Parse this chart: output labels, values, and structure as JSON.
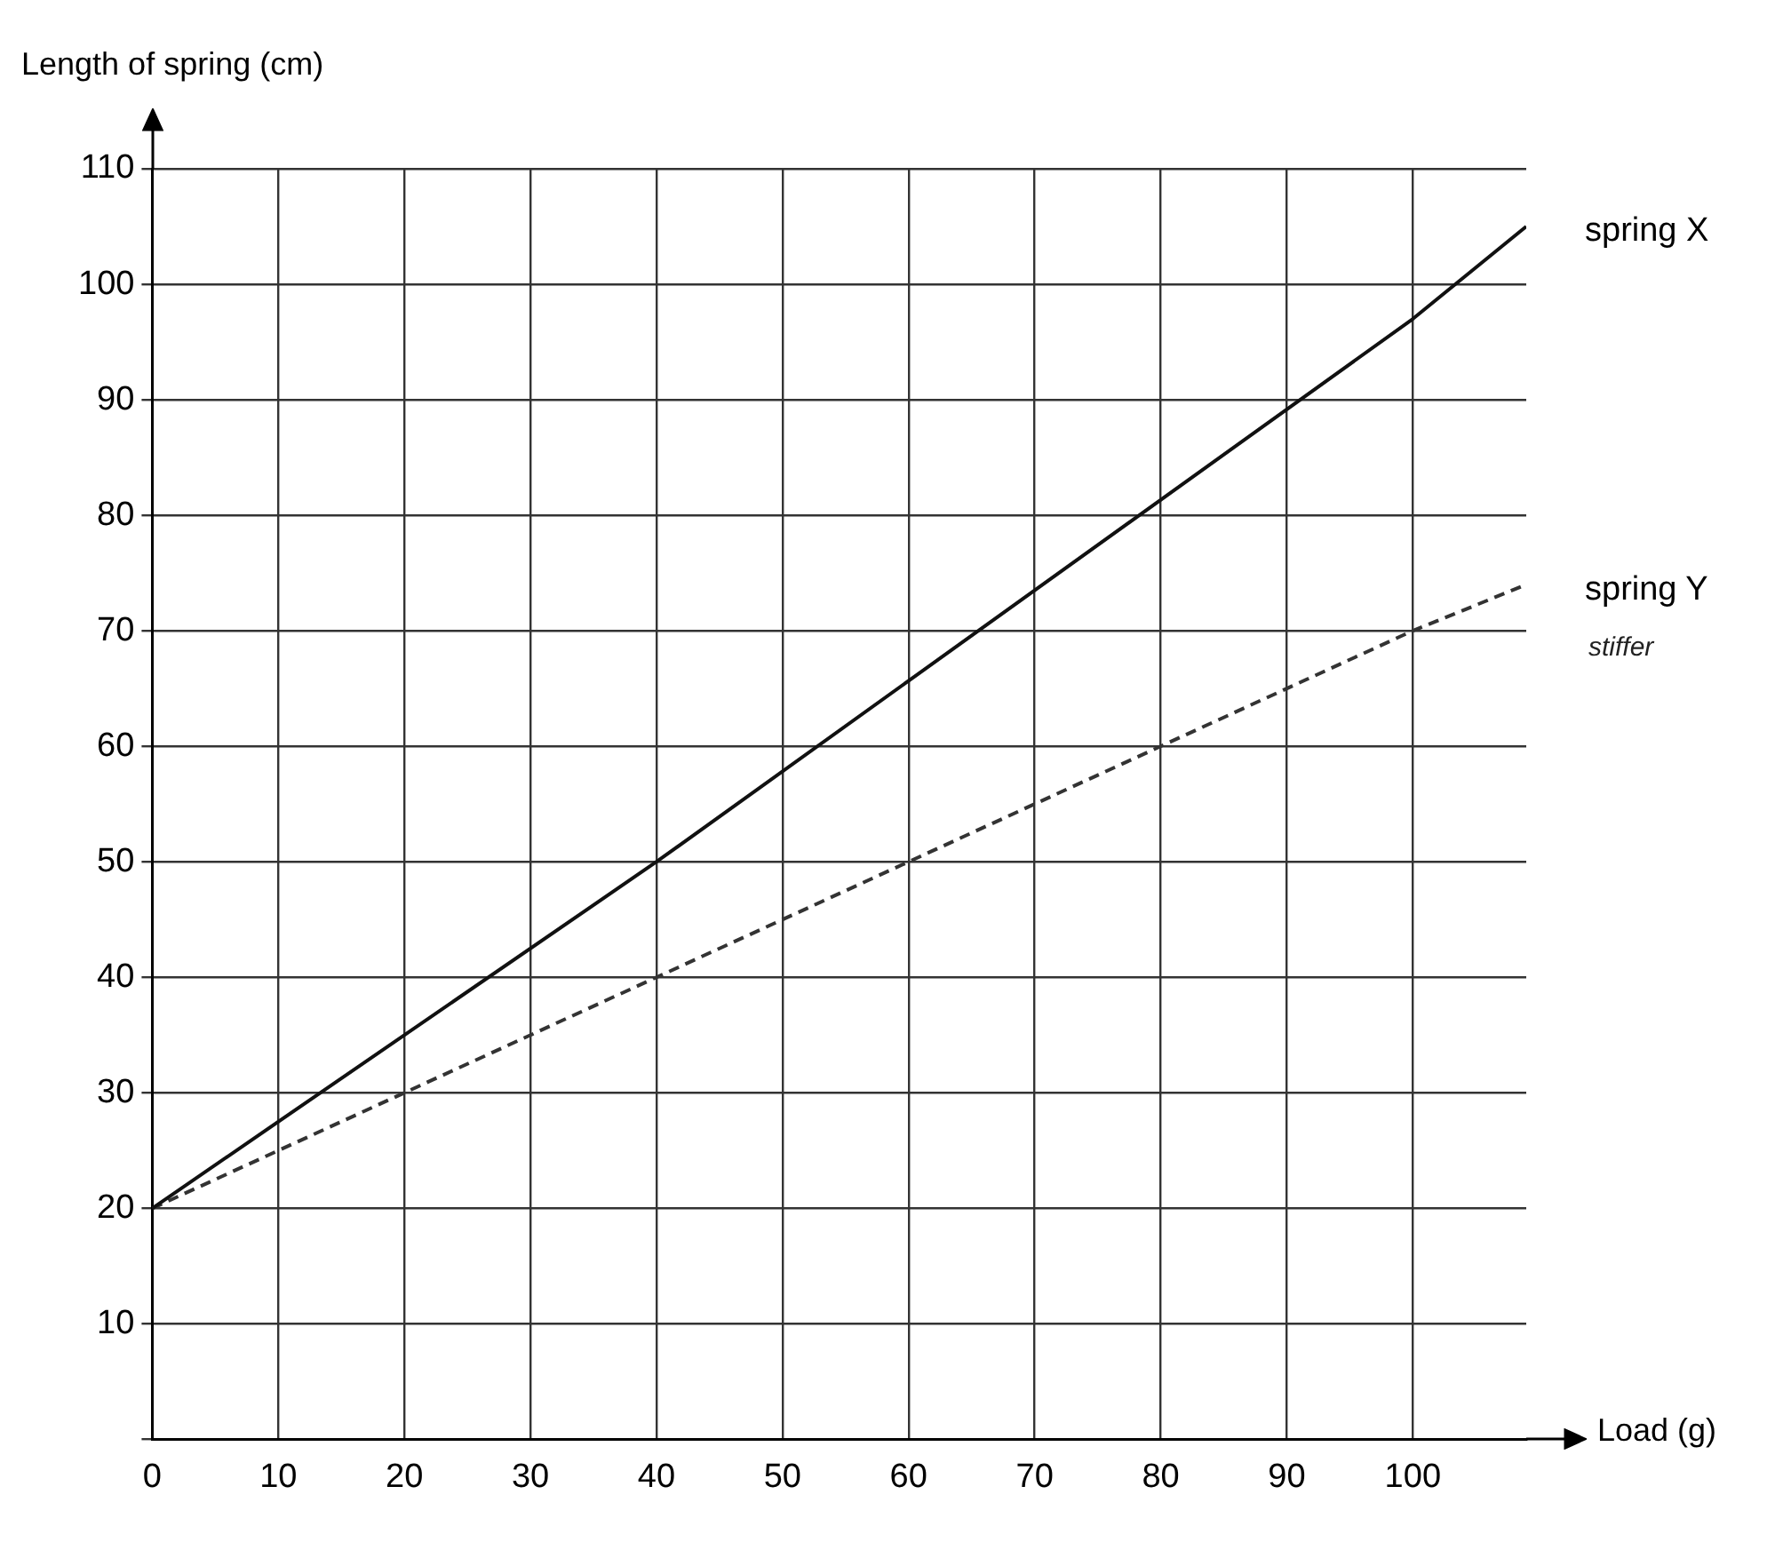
{
  "chart_data": {
    "type": "line",
    "ylabel": "Length of spring (cm)",
    "xlabel": "Load (g)",
    "xlim": [
      0,
      109
    ],
    "ylim": [
      0,
      110
    ],
    "xticks": [
      0,
      10,
      20,
      30,
      40,
      50,
      60,
      70,
      80,
      90,
      100
    ],
    "yticks": [
      {
        "value": 0,
        "label": null
      },
      10,
      20,
      30,
      40,
      50,
      60,
      70,
      80,
      90,
      100,
      110
    ],
    "grid": true,
    "marker": "none",
    "legend": false,
    "annotations": [
      "stiffer"
    ],
    "series": [
      {
        "name": "spring X",
        "color": "#111111",
        "line_style": "solid",
        "x": [
          0,
          40,
          100,
          109
        ],
        "values": [
          20,
          50,
          97,
          105
        ]
      },
      {
        "name": "spring Y",
        "color": "#333333",
        "line_style": "dashed",
        "x": [
          0,
          20,
          40,
          60,
          100,
          109
        ],
        "values": [
          20,
          30,
          40,
          50,
          70,
          74
        ]
      }
    ]
  }
}
